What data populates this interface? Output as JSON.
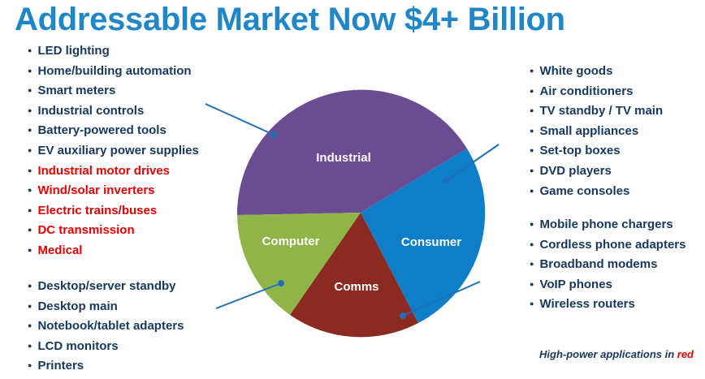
{
  "title": "Addressable Market Now $4+ Billion",
  "segments": {
    "industrial": {
      "label": "Industrial",
      "color": "#6a4c93"
    },
    "consumer": {
      "label": "Consumer",
      "color": "#0e7ec9"
    },
    "comms": {
      "label": "Comms",
      "color": "#8b2a21"
    },
    "computer": {
      "label": "Computer",
      "color": "#8fb447"
    }
  },
  "lists": {
    "industrial": [
      {
        "text": "LED lighting",
        "high_power": false
      },
      {
        "text": "Home/building automation",
        "high_power": false
      },
      {
        "text": "Smart meters",
        "high_power": false
      },
      {
        "text": "Industrial controls",
        "high_power": false
      },
      {
        "text": "Battery-powered tools",
        "high_power": false
      },
      {
        "text": "EV auxiliary power supplies",
        "high_power": false
      },
      {
        "text": "Industrial motor drives",
        "high_power": true
      },
      {
        "text": "Wind/solar inverters",
        "high_power": true
      },
      {
        "text": "Electric trains/buses",
        "high_power": true
      },
      {
        "text": "DC transmission",
        "high_power": true
      },
      {
        "text": "Medical",
        "high_power": true
      }
    ],
    "computer": [
      {
        "text": "Desktop/server standby",
        "high_power": false
      },
      {
        "text": "Desktop main",
        "high_power": false
      },
      {
        "text": "Notebook/tablet adapters",
        "high_power": false
      },
      {
        "text": "LCD monitors",
        "high_power": false
      },
      {
        "text": "Printers",
        "high_power": false
      }
    ],
    "consumer": [
      {
        "text": "White goods",
        "high_power": false
      },
      {
        "text": "Air conditioners",
        "high_power": false
      },
      {
        "text": "TV standby / TV main",
        "high_power": false
      },
      {
        "text": "Small appliances",
        "high_power": false
      },
      {
        "text": "Set-top boxes",
        "high_power": false
      },
      {
        "text": "DVD players",
        "high_power": false
      },
      {
        "text": "Game consoles",
        "high_power": false
      }
    ],
    "comms": [
      {
        "text": "Mobile phone chargers",
        "high_power": false
      },
      {
        "text": "Cordless phone adapters",
        "high_power": false
      },
      {
        "text": "Broadband modems",
        "high_power": false
      },
      {
        "text": "VoIP phones",
        "high_power": false
      },
      {
        "text": "Wireless routers",
        "high_power": false
      }
    ]
  },
  "footnote": {
    "prefix": "High-power applications in ",
    "highlight": "red"
  },
  "colors": {
    "title": "#1f87c8",
    "text": "#17375e",
    "high_power": "#e60000",
    "connector": "#1f6fb5"
  }
}
